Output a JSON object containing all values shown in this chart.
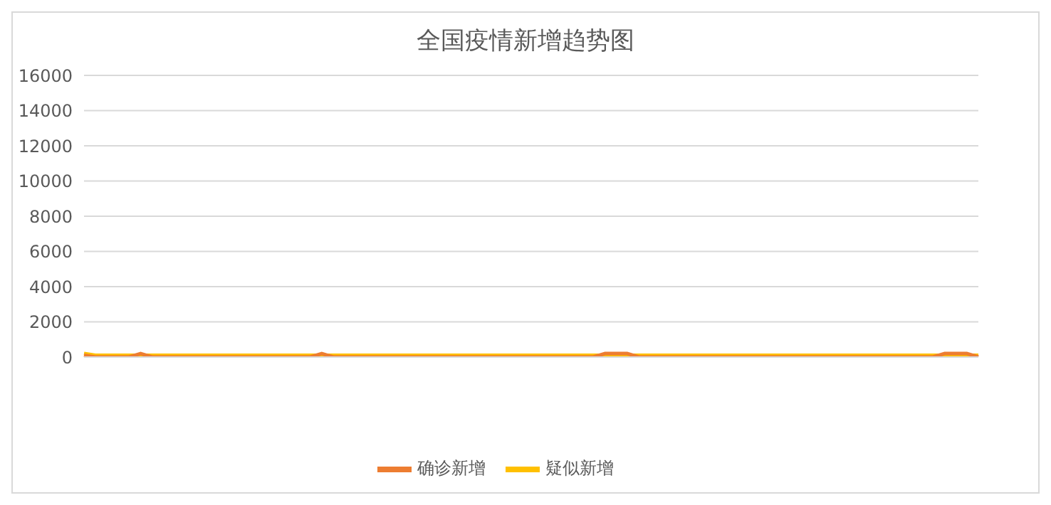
{
  "chart_data": {
    "type": "line",
    "title": "全国疫情新增趋势图",
    "categories": [
      null,
      null,
      null,
      null,
      null,
      null,
      null,
      null,
      null,
      null,
      null,
      null,
      null,
      null,
      null,
      null,
      null,
      null,
      null,
      null,
      null,
      null,
      null,
      null,
      null,
      null,
      null,
      null,
      null,
      null,
      null,
      null,
      null,
      null,
      null,
      null,
      null,
      null,
      null,
      null,
      null,
      null,
      null,
      null,
      null,
      null,
      null,
      null,
      null,
      null,
      null,
      null,
      null,
      null,
      null,
      null,
      null,
      null,
      null,
      null,
      null,
      null,
      null,
      null,
      null,
      null,
      null,
      null,
      null,
      null,
      null,
      null,
      null,
      null,
      null,
      null,
      null,
      null,
      null,
      null
    ],
    "series": [
      {
        "name": "确诊新增",
        "color": "#ed7d31",
        "values": [
          100,
          0,
          0,
          0,
          0,
          200,
          0,
          0,
          0,
          0,
          0,
          0,
          0,
          0,
          0,
          0,
          0,
          0,
          0,
          0,
          0,
          200,
          0,
          0,
          0,
          0,
          0,
          0,
          0,
          0,
          0,
          0,
          0,
          0,
          0,
          0,
          0,
          0,
          0,
          0,
          0,
          0,
          0,
          0,
          0,
          0,
          200,
          200,
          200,
          0,
          0,
          0,
          0,
          0,
          0,
          0,
          0,
          0,
          0,
          0,
          0,
          0,
          0,
          0,
          0,
          0,
          0,
          0,
          0,
          0,
          0,
          0,
          0,
          0,
          0,
          0,
          200,
          200,
          200,
          0
        ]
      },
      {
        "name": "疑似新增",
        "color": "#ffc000",
        "values": [
          200,
          100,
          100,
          100,
          100,
          100,
          100,
          100,
          100,
          100,
          100,
          100,
          100,
          100,
          100,
          100,
          100,
          100,
          100,
          100,
          100,
          100,
          100,
          100,
          100,
          100,
          100,
          100,
          100,
          100,
          100,
          100,
          100,
          100,
          100,
          100,
          100,
          100,
          100,
          100,
          100,
          100,
          100,
          100,
          100,
          100,
          100,
          100,
          100,
          100,
          100,
          100,
          100,
          100,
          100,
          100,
          100,
          100,
          100,
          100,
          100,
          100,
          100,
          100,
          100,
          100,
          100,
          100,
          100,
          100,
          100,
          100,
          100,
          100,
          100,
          100,
          100,
          100,
          100,
          100
        ]
      }
    ],
    "ylim": [
      0,
      16000
    ],
    "yticks": [
      0,
      2000,
      4000,
      6000,
      8000,
      10000,
      12000,
      14000,
      16000
    ],
    "grid": "y",
    "legend": "bottom",
    "marker": "none",
    "line_style": "solid"
  }
}
